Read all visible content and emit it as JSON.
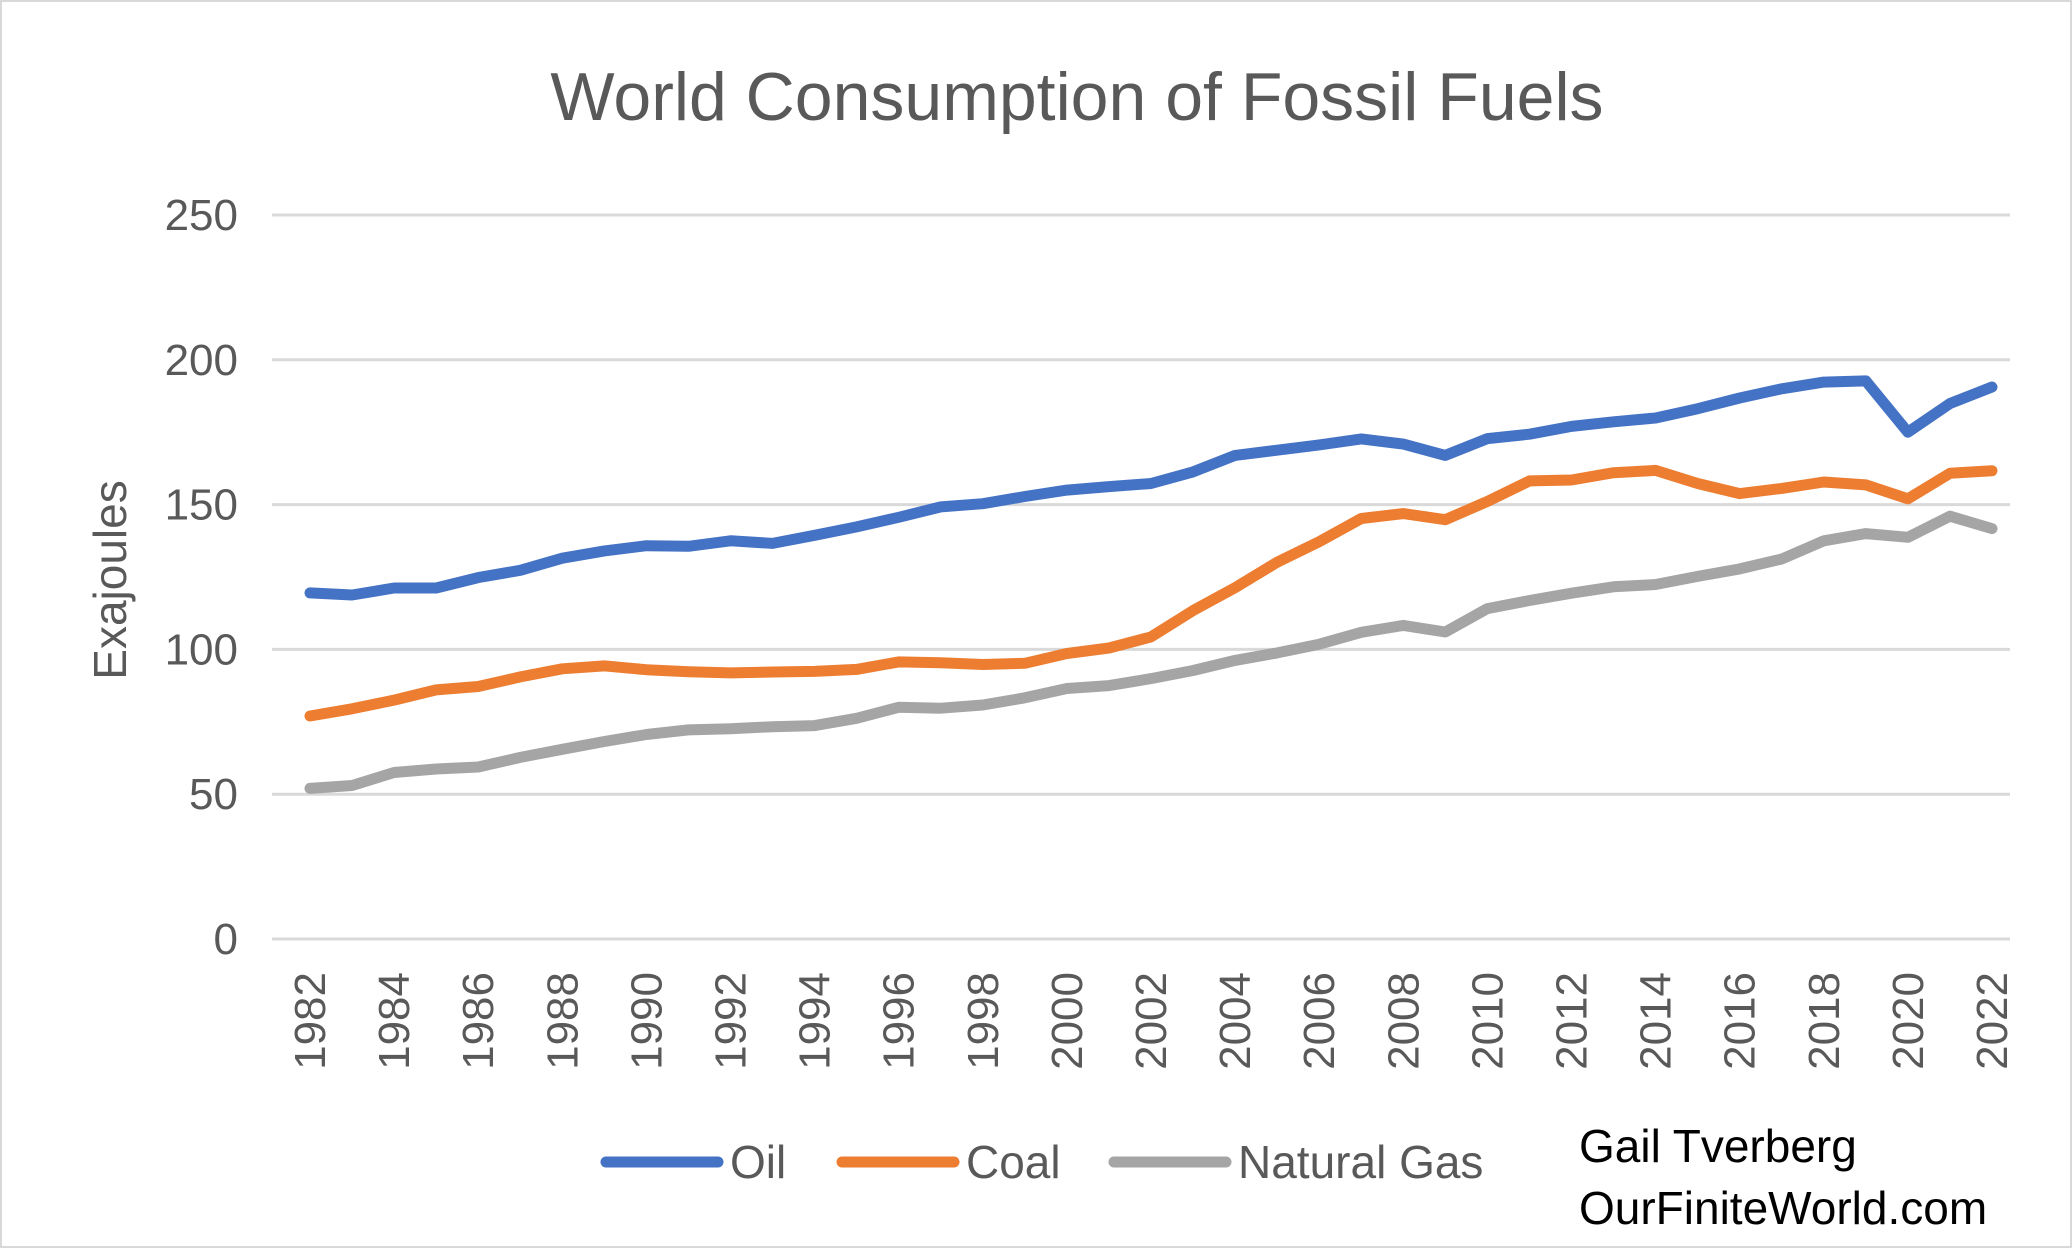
{
  "chart_data": {
    "type": "line",
    "title": "World Consumption of Fossil Fuels",
    "xlabel": "",
    "ylabel": "Exajoules",
    "ylim": [
      0,
      250
    ],
    "yticks": [
      "0",
      "50",
      "100",
      "150",
      "200",
      "250"
    ],
    "x": [
      1982,
      1983,
      1984,
      1985,
      1986,
      1987,
      1988,
      1989,
      1990,
      1991,
      1992,
      1993,
      1994,
      1995,
      1996,
      1997,
      1998,
      1999,
      2000,
      2001,
      2002,
      2003,
      2004,
      2005,
      2006,
      2007,
      2008,
      2009,
      2010,
      2011,
      2012,
      2013,
      2014,
      2015,
      2016,
      2017,
      2018,
      2019,
      2020,
      2021,
      2022
    ],
    "xticks": [
      "1982",
      "1984",
      "1986",
      "1988",
      "1990",
      "1992",
      "1994",
      "1996",
      "1998",
      "2000",
      "2002",
      "2004",
      "2006",
      "2008",
      "2010",
      "2012",
      "2014",
      "2016",
      "2018",
      "2020",
      "2022"
    ],
    "grid": "horizontal",
    "legend_position": "bottom",
    "series": [
      {
        "name": "Oil",
        "color": "#4472c4",
        "values": [
          119.5,
          118.8,
          121.2,
          121.2,
          124.8,
          127.3,
          131.5,
          134.0,
          135.8,
          135.6,
          137.5,
          136.6,
          139.4,
          142.3,
          145.6,
          149.2,
          150.3,
          152.8,
          155.0,
          156.2,
          157.3,
          161.3,
          167.0,
          168.8,
          170.6,
          172.7,
          170.9,
          167.0,
          172.8,
          174.3,
          177.0,
          178.6,
          179.9,
          183.1,
          186.8,
          190.0,
          192.3,
          192.7,
          175.0,
          184.9,
          190.6
        ]
      },
      {
        "name": "Coal",
        "color": "#ed7d31",
        "values": [
          77.0,
          79.5,
          82.5,
          86.0,
          87.2,
          90.5,
          93.3,
          94.3,
          93.0,
          92.3,
          91.9,
          92.2,
          92.4,
          93.1,
          95.7,
          95.4,
          94.8,
          95.2,
          98.6,
          100.5,
          104.3,
          113.4,
          121.3,
          130.1,
          137.2,
          145.2,
          146.9,
          144.8,
          151.1,
          158.2,
          158.5,
          161.0,
          161.8,
          157.3,
          153.8,
          155.6,
          157.8,
          156.8,
          152.0,
          160.8,
          161.7
        ]
      },
      {
        "name": "Natural Gas",
        "color": "#a5a5a5",
        "values": [
          52.0,
          53.0,
          57.5,
          58.7,
          59.4,
          62.7,
          65.5,
          68.2,
          70.6,
          72.2,
          72.6,
          73.3,
          73.7,
          76.2,
          80.0,
          79.7,
          80.8,
          83.3,
          86.5,
          87.5,
          89.9,
          92.7,
          96.2,
          98.8,
          101.8,
          105.9,
          108.3,
          106.0,
          114.1,
          116.9,
          119.4,
          121.6,
          122.4,
          125.2,
          127.8,
          131.2,
          137.5,
          140.0,
          138.7,
          146.0,
          141.7
        ]
      }
    ],
    "credit": [
      "Gail Tverberg",
      "OurFiniteWorld.com"
    ]
  }
}
